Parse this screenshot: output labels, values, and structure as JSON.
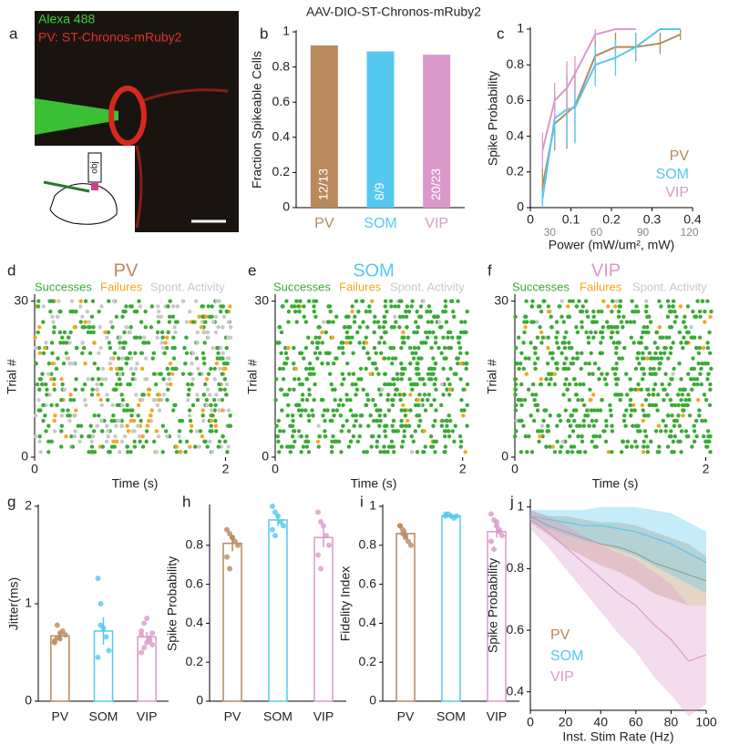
{
  "image_panel": {
    "panel": "a",
    "labels": [
      "Alexa 488",
      "PV: ST-Chronos-mRuby2"
    ],
    "objective": "obj"
  },
  "chart_data": [
    {
      "panel": "b",
      "type": "bar",
      "title": "AAV-DIO-ST-Chronos-mRuby2",
      "ylabel": "Fraction Spikeable Cells",
      "categories": [
        "PV",
        "SOM",
        "VIP"
      ],
      "colors": [
        "#b8895c",
        "#55c8ef",
        "#d99acb"
      ],
      "values": [
        0.923,
        0.889,
        0.87
      ],
      "value_labels": [
        "12/13",
        "8/9",
        "20/23"
      ],
      "ylim": [
        0,
        1
      ],
      "yticks": [
        0,
        0.2,
        0.4,
        0.6,
        0.8,
        1
      ]
    },
    {
      "panel": "c",
      "type": "line",
      "ylabel": "Spike Probability",
      "xlabel": "Power (mW/um², mW)",
      "xlim": [
        0,
        0.4
      ],
      "xticks": [
        0,
        0.1,
        0.2,
        0.3,
        0.4
      ],
      "x2lim": [
        17.4,
        122
      ],
      "x2ticks": [
        30,
        60,
        90,
        120
      ],
      "ylim": [
        0,
        1
      ],
      "yticks": [
        0,
        0.2,
        0.4,
        0.6,
        0.8,
        1
      ],
      "series": [
        {
          "name": "PV",
          "color": "#b8895c",
          "x": [
            0.03,
            0.06,
            0.09,
            0.11,
            0.16,
            0.21,
            0.26,
            0.32,
            0.37
          ],
          "values": [
            0.12,
            0.47,
            0.53,
            0.57,
            0.85,
            0.9,
            0.9,
            0.92,
            0.97
          ],
          "errors": [
            0.1,
            0.15,
            0.2,
            0.2,
            0.1,
            0.08,
            0.08,
            0.06,
            0.03
          ]
        },
        {
          "name": "SOM",
          "color": "#55c8ef",
          "x": [
            0.03,
            0.06,
            0.09,
            0.11,
            0.16,
            0.21,
            0.26,
            0.32,
            0.37
          ],
          "values": [
            0.05,
            0.5,
            0.55,
            0.56,
            0.8,
            0.84,
            0.9,
            1,
            1
          ],
          "errors": [
            0.05,
            0.15,
            0.2,
            0.2,
            0.12,
            0.1,
            0.08,
            0,
            0
          ]
        },
        {
          "name": "VIP",
          "color": "#d99acb",
          "x": [
            0.03,
            0.06,
            0.09,
            0.11,
            0.16,
            0.21,
            0.26
          ],
          "values": [
            0.32,
            0.6,
            0.67,
            0.75,
            0.97,
            1,
            1
          ],
          "errors": [
            0.1,
            0.1,
            0.15,
            0.1,
            0.03,
            0,
            0
          ]
        }
      ]
    },
    {
      "panel": "d",
      "type": "raster",
      "title": "PV",
      "title_color": "#b8895c",
      "ylabel": "Trial #",
      "xlabel": "Time (s)",
      "xlim": [
        0,
        2.1
      ],
      "xticks": [
        0,
        2
      ],
      "ylim": [
        0,
        31
      ],
      "yticks": [
        0,
        30
      ],
      "series": [
        {
          "name": "Successes",
          "color": "#3aaa35"
        },
        {
          "name": "Failures",
          "color": "#f5a623"
        },
        {
          "name": "Spont. Activity",
          "color": "#c8c8c8"
        }
      ]
    },
    {
      "panel": "e",
      "type": "raster",
      "title": "SOM",
      "title_color": "#55c8ef",
      "ylabel": "Trial #",
      "xlabel": "Time (s)",
      "xlim": [
        0,
        2.1
      ],
      "xticks": [
        0,
        2
      ],
      "ylim": [
        0,
        31
      ],
      "yticks": [
        0,
        30
      ],
      "series": [
        {
          "name": "Successes",
          "color": "#3aaa35"
        },
        {
          "name": "Failures",
          "color": "#f5a623"
        },
        {
          "name": "Spont. Activity",
          "color": "#c8c8c8"
        }
      ]
    },
    {
      "panel": "f",
      "type": "raster",
      "title": "VIP",
      "title_color": "#d99acb",
      "ylabel": "Trial #",
      "xlabel": "Time (s)",
      "xlim": [
        0,
        2.1
      ],
      "xticks": [
        0,
        2
      ],
      "ylim": [
        0,
        31
      ],
      "yticks": [
        0,
        30
      ],
      "series": [
        {
          "name": "Successes",
          "color": "#3aaa35"
        },
        {
          "name": "Failures",
          "color": "#f5a623"
        },
        {
          "name": "Spont. Activity",
          "color": "#c8c8c8"
        }
      ]
    },
    {
      "panel": "g",
      "type": "dot-bar",
      "ylabel": "Jitter(ms)",
      "categories": [
        "PV",
        "SOM",
        "VIP"
      ],
      "colors": [
        "#b8895c",
        "#55c8ef",
        "#d99acb"
      ],
      "values": [
        0.67,
        0.72,
        0.66
      ],
      "errors": [
        0.04,
        0.14,
        0.05
      ],
      "points": [
        [
          0.6,
          0.65,
          0.7,
          0.72,
          0.68,
          0.62,
          0.78,
          0.64
        ],
        [
          1.26,
          1.0,
          0.75,
          0.66,
          0.52,
          0.45,
          0.78
        ],
        [
          0.5,
          0.55,
          0.6,
          0.65,
          0.7,
          0.72,
          0.8,
          0.85,
          0.62,
          0.58,
          0.68
        ]
      ],
      "ylim": [
        0,
        2
      ],
      "yticks": [
        0,
        1,
        2
      ]
    },
    {
      "panel": "h",
      "type": "dot-bar",
      "ylabel": "Spike Probability",
      "categories": [
        "PV",
        "SOM",
        "VIP"
      ],
      "colors": [
        "#b8895c",
        "#55c8ef",
        "#d99acb"
      ],
      "values": [
        0.81,
        0.93,
        0.84
      ],
      "errors": [
        0.04,
        0.03,
        0.05
      ],
      "points": [
        [
          0.88,
          0.86,
          0.84,
          0.82,
          0.8,
          0.74,
          0.68,
          0.84
        ],
        [
          1,
          0.97,
          0.95,
          0.92,
          0.9,
          0.88,
          0.85
        ],
        [
          0.97,
          0.92,
          0.9,
          0.85,
          0.8,
          0.75,
          0.68
        ]
      ],
      "ylim": [
        0,
        1
      ],
      "yticks": [
        0,
        0.2,
        0.4,
        0.6,
        0.8
      ]
    },
    {
      "panel": "i",
      "type": "dot-bar",
      "ylabel": "Fidelity Index",
      "categories": [
        "PV",
        "SOM",
        "VIP"
      ],
      "colors": [
        "#b8895c",
        "#55c8ef",
        "#d99acb"
      ],
      "values": [
        0.86,
        0.95,
        0.87
      ],
      "errors": [
        0.02,
        0.01,
        0.03
      ],
      "points": [
        [
          0.9,
          0.88,
          0.85,
          0.82,
          0.8,
          0.9,
          0.86,
          0.84
        ],
        [
          0.95,
          0.96,
          0.95,
          0.94,
          0.95,
          0.96
        ],
        [
          0.96,
          0.93,
          0.9,
          0.88,
          0.85,
          0.82,
          0.78,
          0.92,
          0.87
        ]
      ],
      "ylim": [
        0,
        1
      ],
      "yticks": [
        0,
        0.2,
        0.4,
        0.6,
        0.8,
        1
      ]
    },
    {
      "panel": "j",
      "type": "band-line",
      "ylabel": "Spike Probability",
      "xlabel": "Inst. Stim Rate (Hz)",
      "x": [
        0,
        10,
        20,
        30,
        40,
        50,
        60,
        70,
        80,
        90,
        100
      ],
      "xlim": [
        0,
        100
      ],
      "xticks": [
        0,
        20,
        40,
        60,
        80,
        100
      ],
      "ylim": [
        0.34,
        1.02
      ],
      "yticks": [
        0.4,
        0.6,
        0.8,
        1
      ],
      "series": [
        {
          "name": "PV",
          "color": "#b8895c",
          "values": [
            0.97,
            0.94,
            0.92,
            0.9,
            0.88,
            0.87,
            0.85,
            0.82,
            0.8,
            0.78,
            0.76
          ],
          "errors": [
            0.02,
            0.03,
            0.05,
            0.06,
            0.07,
            0.08,
            0.09,
            0.1,
            0.1,
            0.1,
            0.08
          ]
        },
        {
          "name": "SOM",
          "color": "#55c8ef",
          "values": [
            0.97,
            0.96,
            0.95,
            0.94,
            0.94,
            0.93,
            0.92,
            0.9,
            0.88,
            0.85,
            0.82
          ],
          "errors": [
            0.02,
            0.03,
            0.04,
            0.05,
            0.06,
            0.07,
            0.08,
            0.09,
            0.1,
            0.1,
            0.1
          ]
        },
        {
          "name": "VIP",
          "color": "#d99acb",
          "values": [
            0.96,
            0.92,
            0.87,
            0.82,
            0.77,
            0.72,
            0.68,
            0.62,
            0.57,
            0.5,
            0.52
          ],
          "errors": [
            0.03,
            0.05,
            0.07,
            0.09,
            0.11,
            0.13,
            0.15,
            0.17,
            0.18,
            0.18,
            0.16
          ]
        }
      ]
    }
  ]
}
